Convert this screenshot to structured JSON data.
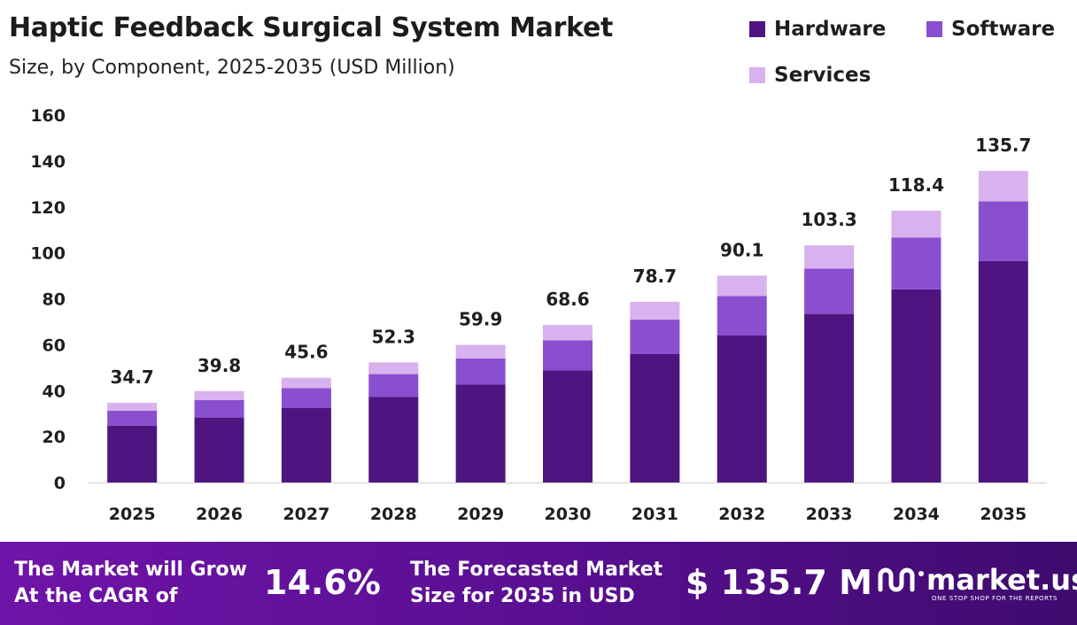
{
  "chart_data": {
    "type": "bar",
    "stacked": true,
    "title": "Haptic Feedback Surgical System Market",
    "subtitle": "Size, by Component, 2025-2035 (USD Million)",
    "categories": [
      "2025",
      "2026",
      "2027",
      "2028",
      "2029",
      "2030",
      "2031",
      "2032",
      "2033",
      "2034",
      "2035"
    ],
    "series": [
      {
        "name": "Hardware",
        "color": "#4e1580",
        "values": [
          24.7,
          28.3,
          32.4,
          37.2,
          42.6,
          48.8,
          55.9,
          64.0,
          73.4,
          84.1,
          96.5
        ]
      },
      {
        "name": "Software",
        "color": "#8a4fcf",
        "values": [
          6.6,
          7.6,
          8.7,
          10.0,
          11.4,
          13.1,
          15.0,
          17.2,
          19.7,
          22.6,
          25.9
        ]
      },
      {
        "name": "Services",
        "color": "#d8b2ee",
        "values": [
          3.4,
          3.9,
          4.5,
          5.1,
          5.9,
          6.7,
          7.8,
          8.9,
          10.2,
          11.7,
          13.3
        ]
      }
    ],
    "totals": [
      "34.7",
      "39.8",
      "45.6",
      "52.3",
      "59.9",
      "68.6",
      "78.7",
      "90.1",
      "103.3",
      "118.4",
      "135.7"
    ],
    "yticks": [
      "0",
      "20",
      "40",
      "60",
      "80",
      "100",
      "120",
      "140",
      "160"
    ],
    "ylim": [
      0,
      160
    ],
    "xlabel": "",
    "ylabel": "",
    "grid": false,
    "legend_position": "top-right"
  },
  "footer": {
    "cagr_label_line1": "The Market will Grow",
    "cagr_label_line2": "At the CAGR of",
    "cagr_value": "14.6%",
    "forecast_label_line1": "The Forecasted Market",
    "forecast_label_line2": "Size for 2035 in USD",
    "forecast_value": "$ 135.7 M",
    "logo_text": "market.us",
    "logo_tagline": "ONE STOP SHOP FOR THE REPORTS"
  }
}
